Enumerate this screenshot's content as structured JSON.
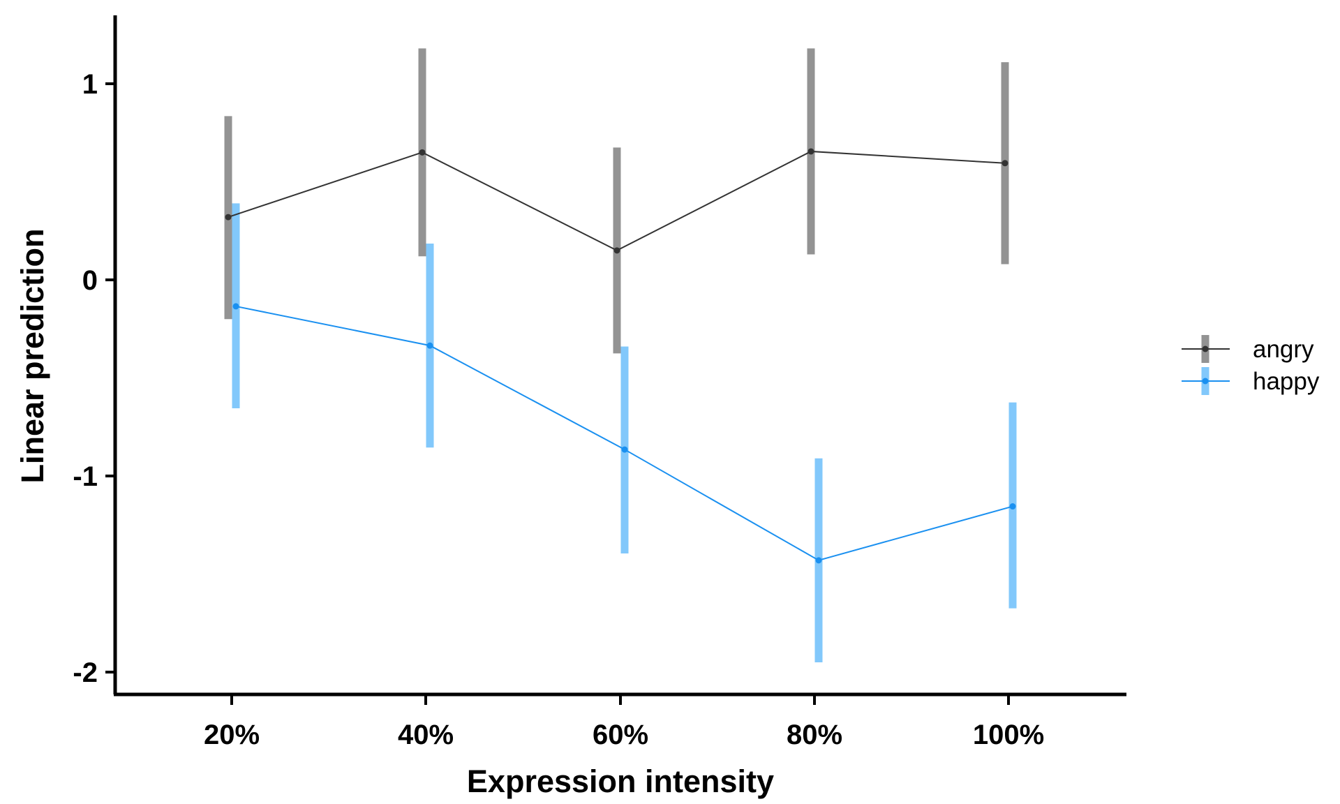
{
  "chart_data": {
    "type": "line",
    "xlabel": "Expression intensity",
    "ylabel": "Linear prediction",
    "categories": [
      "20%",
      "40%",
      "60%",
      "80%",
      "100%"
    ],
    "ylim": [
      -2.1,
      1.35
    ],
    "yticks": [
      1,
      0,
      -1,
      -2
    ],
    "ytick_labels": [
      "1",
      "0",
      "-1",
      "-2"
    ],
    "grid": false,
    "legend_position": "right",
    "series": [
      {
        "name": "angry",
        "color": "#333333",
        "ci_color": "#939393",
        "values": [
          0.32,
          0.65,
          0.15,
          0.655,
          0.595
        ],
        "ci_low": [
          -0.2,
          0.12,
          -0.375,
          0.13,
          0.08
        ],
        "ci_high": [
          0.835,
          1.18,
          0.675,
          1.18,
          1.11
        ]
      },
      {
        "name": "happy",
        "color": "#1a90f0",
        "ci_color": "#82c8fb",
        "values": [
          -0.135,
          -0.335,
          -0.865,
          -1.43,
          -1.155
        ],
        "ci_low": [
          -0.655,
          -0.855,
          -1.395,
          -1.95,
          -1.675
        ],
        "ci_high": [
          0.39,
          0.185,
          -0.34,
          -0.91,
          -0.625
        ]
      }
    ]
  }
}
